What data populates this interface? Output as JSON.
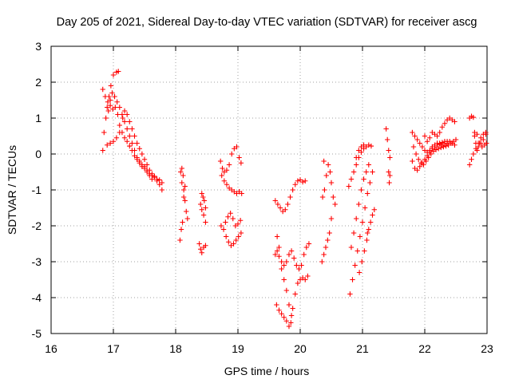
{
  "chart_data": {
    "type": "scatter",
    "title": "Day 205 of 2021, Sidereal Day-to-day VTEC variation (SDTVAR) for receiver ascg",
    "xlabel": "GPS time / hours",
    "ylabel": "SDTVAR / TECUs",
    "xlim": [
      16,
      23
    ],
    "ylim": [
      -5,
      3
    ],
    "xticks": [
      "16",
      "17",
      "18",
      "19",
      "20",
      "21",
      "22",
      "23"
    ],
    "yticks": [
      "-5",
      "-4",
      "-3",
      "-2",
      "-1",
      "0",
      "1",
      "2",
      "3"
    ],
    "grid": true,
    "marker": "plus",
    "color": "#ff0000",
    "segments": [
      [
        [
          16.83,
          0.1
        ],
        [
          16.85,
          0.6
        ],
        [
          16.88,
          1.0
        ],
        [
          16.9,
          1.3
        ],
        [
          16.93,
          1.6
        ],
        [
          16.96,
          1.9
        ],
        [
          17.0,
          2.2
        ],
        [
          17.05,
          2.28
        ],
        [
          17.08,
          2.3
        ]
      ],
      [
        [
          16.83,
          1.8
        ],
        [
          16.87,
          1.6
        ],
        [
          16.91,
          1.45
        ],
        [
          16.95,
          1.35
        ],
        [
          16.99,
          1.25
        ],
        [
          17.03,
          1.3
        ],
        [
          17.07,
          1.1
        ],
        [
          17.1,
          0.8
        ],
        [
          17.14,
          0.6
        ],
        [
          17.18,
          0.45
        ],
        [
          17.22,
          0.35
        ],
        [
          17.26,
          0.22
        ],
        [
          17.3,
          0.1
        ],
        [
          17.34,
          -0.05
        ],
        [
          17.38,
          -0.15
        ],
        [
          17.42,
          -0.2
        ],
        [
          17.46,
          -0.3
        ],
        [
          17.5,
          -0.35
        ],
        [
          17.54,
          -0.45
        ],
        [
          17.58,
          -0.55
        ],
        [
          17.62,
          -0.6
        ],
        [
          17.66,
          -0.65
        ],
        [
          17.7,
          -0.7
        ],
        [
          17.74,
          -0.72
        ],
        [
          17.78,
          -0.8
        ]
      ],
      [
        [
          16.9,
          0.25
        ],
        [
          16.95,
          0.3
        ],
        [
          17.0,
          0.35
        ],
        [
          17.05,
          0.45
        ],
        [
          17.1,
          0.6
        ],
        [
          17.15,
          1.0
        ],
        [
          17.18,
          1.2
        ],
        [
          17.22,
          1.1
        ],
        [
          17.26,
          0.9
        ],
        [
          17.3,
          0.7
        ],
        [
          17.34,
          0.5
        ],
        [
          17.38,
          0.3
        ],
        [
          17.42,
          0.15
        ],
        [
          17.46,
          0.0
        ],
        [
          17.5,
          -0.15
        ],
        [
          17.54,
          -0.3
        ],
        [
          17.58,
          -0.45
        ],
        [
          17.62,
          -0.55
        ],
        [
          17.66,
          -0.62
        ],
        [
          17.7,
          -0.75
        ],
        [
          17.74,
          -0.85
        ],
        [
          17.78,
          -1.0
        ]
      ],
      [
        [
          16.92,
          1.2
        ],
        [
          16.95,
          1.5
        ],
        [
          16.98,
          1.7
        ],
        [
          17.02,
          1.6
        ],
        [
          17.06,
          1.45
        ],
        [
          17.1,
          1.3
        ],
        [
          17.14,
          1.1
        ],
        [
          17.18,
          0.9
        ],
        [
          17.22,
          0.7
        ],
        [
          17.26,
          0.5
        ],
        [
          17.3,
          0.3
        ],
        [
          17.34,
          0.1
        ],
        [
          17.38,
          -0.1
        ],
        [
          17.42,
          -0.25
        ],
        [
          17.46,
          -0.35
        ],
        [
          17.5,
          -0.4
        ],
        [
          17.54,
          -0.5
        ],
        [
          17.58,
          -0.6
        ],
        [
          17.62,
          -0.7
        ]
      ],
      [
        [
          18.07,
          -2.4
        ],
        [
          18.09,
          -2.1
        ],
        [
          18.11,
          -1.9
        ],
        [
          18.13,
          -1.2
        ],
        [
          18.15,
          -0.9
        ],
        [
          18.12,
          -0.6
        ],
        [
          18.1,
          -0.4
        ],
        [
          18.08,
          -0.5
        ],
        [
          18.1,
          -0.8
        ],
        [
          18.13,
          -1.0
        ],
        [
          18.15,
          -1.3
        ],
        [
          18.17,
          -1.6
        ],
        [
          18.19,
          -1.8
        ]
      ],
      [
        [
          18.38,
          -2.5
        ],
        [
          18.4,
          -2.65
        ],
        [
          18.42,
          -2.75
        ],
        [
          18.45,
          -2.6
        ],
        [
          18.48,
          -2.55
        ],
        [
          18.4,
          -1.4
        ],
        [
          18.42,
          -1.55
        ],
        [
          18.45,
          -1.7
        ],
        [
          18.48,
          -1.9
        ],
        [
          18.42,
          -1.1
        ],
        [
          18.44,
          -1.2
        ],
        [
          18.46,
          -1.3
        ],
        [
          18.48,
          -1.5
        ]
      ],
      [
        [
          18.72,
          -0.2
        ],
        [
          18.75,
          -0.4
        ],
        [
          18.78,
          -0.5
        ],
        [
          18.82,
          -0.45
        ],
        [
          18.86,
          -0.3
        ],
        [
          18.9,
          0.0
        ],
        [
          18.94,
          0.15
        ],
        [
          18.98,
          0.2
        ],
        [
          19.02,
          -0.1
        ],
        [
          19.05,
          -0.25
        ]
      ],
      [
        [
          18.74,
          -0.6
        ],
        [
          18.78,
          -0.75
        ],
        [
          18.82,
          -0.85
        ],
        [
          18.86,
          -0.95
        ],
        [
          18.9,
          -1.0
        ],
        [
          18.94,
          -1.05
        ],
        [
          18.98,
          -1.1
        ],
        [
          19.02,
          -1.05
        ],
        [
          19.06,
          -1.1
        ]
      ],
      [
        [
          18.73,
          -2.0
        ],
        [
          18.77,
          -2.1
        ],
        [
          18.81,
          -2.3
        ],
        [
          18.85,
          -2.45
        ],
        [
          18.89,
          -2.55
        ],
        [
          18.93,
          -2.5
        ],
        [
          18.97,
          -2.4
        ],
        [
          19.01,
          -2.3
        ],
        [
          19.05,
          -2.2
        ]
      ],
      [
        [
          18.8,
          -1.9
        ],
        [
          18.84,
          -1.75
        ],
        [
          18.88,
          -1.65
        ],
        [
          18.92,
          -1.8
        ],
        [
          18.96,
          -2.0
        ],
        [
          19.0,
          -1.95
        ],
        [
          19.04,
          -1.85
        ]
      ],
      [
        [
          19.6,
          -1.3
        ],
        [
          19.64,
          -1.4
        ],
        [
          19.68,
          -1.5
        ],
        [
          19.72,
          -1.6
        ],
        [
          19.76,
          -1.55
        ],
        [
          19.8,
          -1.4
        ],
        [
          19.84,
          -1.2
        ],
        [
          19.88,
          -1.0
        ],
        [
          19.92,
          -0.85
        ],
        [
          19.96,
          -0.75
        ],
        [
          20.0,
          -0.72
        ],
        [
          20.04,
          -0.78
        ],
        [
          20.08,
          -0.75
        ]
      ],
      [
        [
          19.6,
          -2.8
        ],
        [
          19.63,
          -2.7
        ],
        [
          19.66,
          -2.85
        ],
        [
          19.7,
          -3.0
        ],
        [
          19.74,
          -3.1
        ],
        [
          19.78,
          -3.0
        ],
        [
          19.82,
          -2.8
        ],
        [
          19.86,
          -2.7
        ],
        [
          19.9,
          -2.9
        ],
        [
          19.94,
          -3.1
        ],
        [
          19.98,
          -3.2
        ],
        [
          20.02,
          -3.1
        ],
        [
          20.06,
          -2.8
        ],
        [
          20.1,
          -2.6
        ],
        [
          20.14,
          -2.5
        ]
      ],
      [
        [
          19.62,
          -4.2
        ],
        [
          19.66,
          -4.35
        ],
        [
          19.7,
          -4.45
        ],
        [
          19.74,
          -4.55
        ],
        [
          19.78,
          -4.65
        ],
        [
          19.82,
          -4.8
        ],
        [
          19.85,
          -4.7
        ],
        [
          19.88,
          -4.3
        ],
        [
          19.92,
          -3.9
        ],
        [
          19.96,
          -3.6
        ],
        [
          20.0,
          -3.5
        ],
        [
          20.04,
          -3.45
        ],
        [
          20.08,
          -3.5
        ],
        [
          20.12,
          -3.4
        ]
      ],
      [
        [
          19.63,
          -2.3
        ],
        [
          19.66,
          -2.6
        ],
        [
          19.7,
          -3.2
        ],
        [
          19.74,
          -3.5
        ],
        [
          19.78,
          -3.8
        ],
        [
          19.82,
          -4.2
        ],
        [
          19.86,
          -4.5
        ]
      ],
      [
        [
          20.35,
          -3.0
        ],
        [
          20.38,
          -2.8
        ],
        [
          20.41,
          -2.6
        ],
        [
          20.44,
          -2.4
        ],
        [
          20.47,
          -2.2
        ],
        [
          20.5,
          -1.8
        ],
        [
          20.36,
          -1.2
        ],
        [
          20.39,
          -1.0
        ],
        [
          20.42,
          -0.6
        ],
        [
          20.45,
          -0.3
        ],
        [
          20.48,
          -0.5
        ],
        [
          20.5,
          -0.8
        ],
        [
          20.53,
          -1.2
        ],
        [
          20.56,
          -1.4
        ],
        [
          20.38,
          -0.2
        ]
      ],
      [
        [
          20.78,
          -0.9
        ],
        [
          20.82,
          -0.7
        ],
        [
          20.86,
          -0.5
        ],
        [
          20.9,
          -0.3
        ],
        [
          20.94,
          -0.1
        ],
        [
          20.98,
          0.05
        ],
        [
          21.02,
          0.15
        ],
        [
          21.06,
          0.2
        ],
        [
          21.1,
          0.25
        ],
        [
          21.14,
          0.22
        ]
      ],
      [
        [
          20.8,
          -3.9
        ],
        [
          20.84,
          -3.5
        ],
        [
          20.88,
          -3.1
        ],
        [
          20.92,
          -2.7
        ],
        [
          20.96,
          -2.3
        ],
        [
          21.0,
          -1.9
        ],
        [
          21.04,
          -1.5
        ],
        [
          21.08,
          -1.1
        ],
        [
          21.12,
          -0.8
        ],
        [
          21.16,
          -0.5
        ],
        [
          20.9,
          -0.1
        ],
        [
          20.94,
          0.1
        ],
        [
          20.98,
          0.2
        ],
        [
          21.02,
          0.25
        ]
      ],
      [
        [
          20.82,
          -2.6
        ],
        [
          20.86,
          -2.2
        ],
        [
          20.9,
          -1.8
        ],
        [
          20.94,
          -1.4
        ],
        [
          20.98,
          -1.0
        ],
        [
          21.02,
          -0.7
        ],
        [
          21.06,
          -0.5
        ],
        [
          21.1,
          -0.3
        ]
      ],
      [
        [
          20.95,
          -3.3
        ],
        [
          20.99,
          -3.0
        ],
        [
          21.03,
          -2.7
        ],
        [
          21.07,
          -2.4
        ],
        [
          21.1,
          -2.1
        ],
        [
          21.13,
          -1.9
        ],
        [
          21.16,
          -1.7
        ],
        [
          21.19,
          -1.55
        ],
        [
          21.08,
          -2.2
        ]
      ],
      [
        [
          21.38,
          0.7
        ],
        [
          21.4,
          0.4
        ],
        [
          21.42,
          0.1
        ],
        [
          21.44,
          -0.1
        ],
        [
          21.42,
          -0.5
        ],
        [
          21.44,
          -0.6
        ],
        [
          21.43,
          -0.8
        ]
      ],
      [
        [
          21.8,
          0.6
        ],
        [
          21.84,
          0.5
        ],
        [
          21.88,
          0.4
        ],
        [
          21.92,
          0.3
        ],
        [
          21.96,
          0.2
        ],
        [
          22.0,
          0.1
        ],
        [
          22.04,
          0.05
        ],
        [
          22.08,
          0.1
        ],
        [
          22.12,
          0.2
        ],
        [
          22.16,
          0.25
        ],
        [
          22.2,
          0.3
        ],
        [
          22.24,
          0.28
        ],
        [
          22.28,
          0.25
        ],
        [
          22.32,
          0.3
        ],
        [
          22.36,
          0.35
        ],
        [
          22.4,
          0.35
        ],
        [
          22.44,
          0.3
        ],
        [
          22.48,
          0.25
        ]
      ],
      [
        [
          21.8,
          -0.2
        ],
        [
          21.84,
          -0.4
        ],
        [
          21.88,
          -0.45
        ],
        [
          21.92,
          -0.35
        ],
        [
          21.96,
          -0.25
        ],
        [
          22.0,
          -0.15
        ],
        [
          22.04,
          -0.05
        ],
        [
          22.08,
          0.05
        ],
        [
          22.12,
          0.15
        ],
        [
          22.16,
          0.2
        ],
        [
          22.2,
          0.25
        ],
        [
          22.24,
          0.3
        ],
        [
          22.28,
          0.32
        ],
        [
          22.32,
          0.35
        ],
        [
          22.36,
          0.3
        ]
      ],
      [
        [
          21.82,
          0.2
        ],
        [
          21.86,
          0.0
        ],
        [
          21.9,
          -0.15
        ],
        [
          21.94,
          -0.25
        ],
        [
          21.98,
          -0.3
        ],
        [
          22.02,
          -0.2
        ],
        [
          22.06,
          -0.1
        ],
        [
          22.1,
          0.0
        ],
        [
          22.14,
          0.08
        ],
        [
          22.18,
          0.12
        ],
        [
          22.22,
          0.15
        ],
        [
          22.26,
          0.18
        ],
        [
          22.3,
          0.2
        ],
        [
          22.34,
          0.22
        ],
        [
          22.38,
          0.25
        ],
        [
          22.42,
          0.3
        ],
        [
          22.46,
          0.35
        ],
        [
          22.5,
          0.4
        ]
      ],
      [
        [
          22.0,
          0.5
        ],
        [
          22.04,
          0.35
        ],
        [
          22.08,
          0.45
        ],
        [
          22.12,
          0.6
        ],
        [
          22.16,
          0.55
        ],
        [
          22.2,
          0.5
        ],
        [
          22.24,
          0.6
        ],
        [
          22.28,
          0.75
        ],
        [
          22.32,
          0.85
        ],
        [
          22.36,
          0.95
        ],
        [
          22.4,
          1.0
        ],
        [
          22.44,
          0.95
        ],
        [
          22.48,
          0.9
        ]
      ],
      [
        [
          22.72,
          1.0
        ],
        [
          22.75,
          1.05
        ],
        [
          22.78,
          1.02
        ],
        [
          22.8,
          0.6
        ],
        [
          22.82,
          0.3
        ],
        [
          22.84,
          0.1
        ],
        [
          22.86,
          0.2
        ],
        [
          22.9,
          0.3
        ],
        [
          22.94,
          0.4
        ],
        [
          22.98,
          0.55
        ]
      ],
      [
        [
          22.72,
          -0.3
        ],
        [
          22.75,
          -0.15
        ],
        [
          22.78,
          0.0
        ],
        [
          22.82,
          0.15
        ],
        [
          22.86,
          0.3
        ],
        [
          22.9,
          0.45
        ],
        [
          22.94,
          0.55
        ],
        [
          22.98,
          0.6
        ]
      ],
      [
        [
          22.8,
          0.5
        ],
        [
          22.84,
          0.55
        ],
        [
          22.88,
          0.3
        ],
        [
          22.92,
          0.2
        ],
        [
          22.96,
          0.25
        ],
        [
          22.99,
          0.3
        ]
      ]
    ]
  }
}
